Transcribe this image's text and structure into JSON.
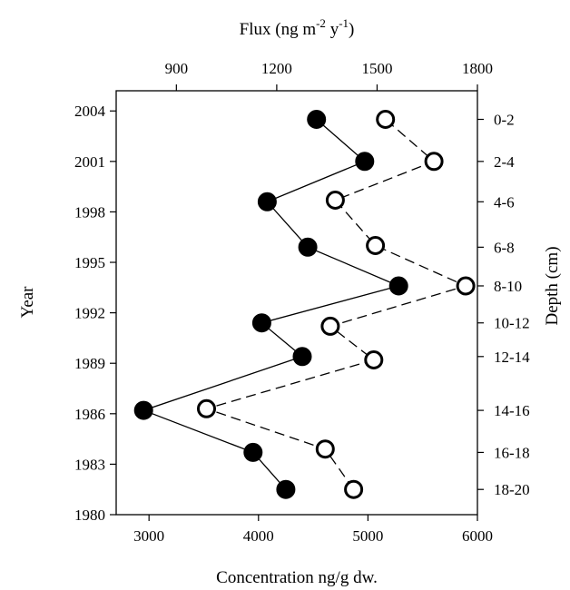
{
  "chart_data": {
    "type": "line",
    "top_axis_title": {
      "prefix": "Flux (ng m",
      "sup1": "-2",
      "mid": " y",
      "sup2": "-1",
      "suffix": ")"
    },
    "xlabel": "Concentration ng/g dw.",
    "ylabel": "Year",
    "y2label": "Depth (cm)",
    "x_ticks": [
      "3000",
      "4000",
      "5000",
      "6000"
    ],
    "top_ticks": [
      "900",
      "1200",
      "1500",
      "1800"
    ],
    "y_ticks": [
      "1980",
      "1983",
      "1986",
      "1989",
      "1992",
      "1995",
      "1998",
      "2001",
      "2004"
    ],
    "depth_ticks": [
      "0-2",
      "2-4",
      "4-6",
      "6-8",
      "8-10",
      "10-12",
      "12-14",
      "14-16",
      "16-18",
      "18-20"
    ],
    "xlim": [
      2700,
      6000
    ],
    "top_xlim": [
      720,
      1800
    ],
    "ylim": [
      1980,
      2005.2
    ],
    "series": [
      {
        "marker": "filled-circle",
        "line_style": "solid",
        "x_axis": "bottom",
        "points": [
          {
            "x": 4250,
            "y": 1981.5
          },
          {
            "x": 3950,
            "y": 1983.7
          },
          {
            "x": 2950,
            "y": 1986.2
          },
          {
            "x": 4400,
            "y": 1989.4
          },
          {
            "x": 4030,
            "y": 1991.4
          },
          {
            "x": 5280,
            "y": 1993.6
          },
          {
            "x": 4450,
            "y": 1995.9
          },
          {
            "x": 4080,
            "y": 1998.6
          },
          {
            "x": 4970,
            "y": 2001.0
          },
          {
            "x": 4530,
            "y": 2003.5
          }
        ]
      },
      {
        "marker": "open-circle",
        "line_style": "dashed",
        "x_axis": "top",
        "points": [
          {
            "x": 1430,
            "y": 1981.5
          },
          {
            "x": 1345,
            "y": 1983.9
          },
          {
            "x": 990,
            "y": 1986.3
          },
          {
            "x": 1490,
            "y": 1989.2
          },
          {
            "x": 1360,
            "y": 1991.2
          },
          {
            "x": 1765,
            "y": 1993.6
          },
          {
            "x": 1495,
            "y": 1996.0
          },
          {
            "x": 1375,
            "y": 1998.7
          },
          {
            "x": 1670,
            "y": 2001.0
          },
          {
            "x": 1525,
            "y": 2003.5
          }
        ]
      }
    ],
    "grid": false,
    "legend": "none"
  }
}
